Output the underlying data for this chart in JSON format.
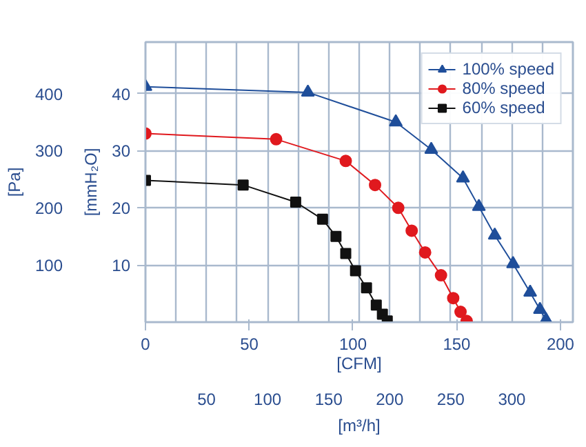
{
  "chart_data": {
    "type": "line",
    "xlabel": "[m³/h]",
    "x2label": "[CFM]",
    "ylabel": "[Pa]",
    "y2label": "[mmH₂O]",
    "xlim": [
      0,
      350
    ],
    "xticks": [
      {
        "value": 25,
        "label": null
      },
      50,
      {
        "value": 75,
        "label": null
      },
      100,
      {
        "value": 125,
        "label": null
      },
      150,
      {
        "value": 175,
        "label": null
      },
      200,
      {
        "value": 225,
        "label": null
      },
      250,
      {
        "value": 275,
        "label": null
      },
      300,
      {
        "value": 325,
        "label": null
      }
    ],
    "x2lim": [
      0,
      206
    ],
    "x2ticks": [
      0,
      50,
      100,
      150,
      200
    ],
    "ylim": [
      0,
      490
    ],
    "yticks": [
      100,
      200,
      300,
      400
    ],
    "y2lim": [
      0,
      49
    ],
    "y2ticks": [
      10,
      20,
      30,
      40
    ],
    "grid": true,
    "legend": "top right",
    "line_style": "solid",
    "series": [
      {
        "name": "100% speed",
        "color": "#1f4e9a",
        "marker": "triangle",
        "x": [
          0,
          133,
          205,
          234,
          260,
          273,
          286,
          301,
          315,
          323,
          328
        ],
        "values": [
          412,
          402,
          350,
          302,
          252,
          202,
          152,
          102,
          52,
          22,
          4
        ]
      },
      {
        "name": "80% speed",
        "color": "#e0191e",
        "marker": "circle",
        "x": [
          0,
          107,
          164,
          188,
          207,
          218,
          229,
          242,
          252,
          258,
          263
        ],
        "values": [
          330,
          320,
          282,
          240,
          200,
          160,
          122,
          82,
          42,
          18,
          2
        ]
      },
      {
        "name": "60% speed",
        "color": "#111111",
        "marker": "square",
        "x": [
          0,
          80,
          123,
          145,
          156,
          164,
          172,
          181,
          189,
          194,
          198
        ],
        "values": [
          248,
          240,
          210,
          180,
          150,
          120,
          90,
          60,
          30,
          14,
          2
        ]
      }
    ]
  }
}
